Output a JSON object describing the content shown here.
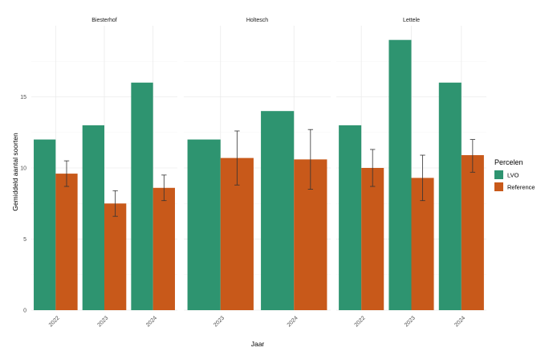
{
  "chart_data": {
    "type": "bar",
    "xlabel": "Jaar",
    "ylabel": "Gemiddeld aantal soorten",
    "ylim": [
      0,
      20
    ],
    "yticks": [
      0,
      5,
      10,
      15
    ],
    "legend": {
      "title": "Percelen",
      "position": "right",
      "entries": [
        {
          "name": "LVO",
          "color": "#2E9470"
        },
        {
          "name": "Reference",
          "color": "#C8591A"
        }
      ]
    },
    "facets": [
      {
        "title": "Biesterhof",
        "years": [
          {
            "year": "2022",
            "LVO": 12,
            "Reference": 9.6,
            "ref_err": [
              8.7,
              10.5
            ]
          },
          {
            "year": "2023",
            "LVO": 13,
            "Reference": 7.5,
            "ref_err": [
              6.6,
              8.4
            ]
          },
          {
            "year": "2024",
            "LVO": 16,
            "Reference": 8.6,
            "ref_err": [
              7.7,
              9.5
            ]
          }
        ]
      },
      {
        "title": "Holtesch",
        "years": [
          {
            "year": "2023",
            "LVO": 12,
            "Reference": 10.7,
            "ref_err": [
              8.8,
              12.6
            ]
          },
          {
            "year": "2024",
            "LVO": 14,
            "Reference": 10.6,
            "ref_err": [
              8.5,
              12.7
            ]
          }
        ]
      },
      {
        "title": "Lettele",
        "years": [
          {
            "year": "2022",
            "LVO": 13,
            "Reference": 10.0,
            "ref_err": [
              8.7,
              11.3
            ]
          },
          {
            "year": "2023",
            "LVO": 19,
            "Reference": 9.3,
            "ref_err": [
              7.7,
              10.9
            ]
          },
          {
            "year": "2024",
            "LVO": 16,
            "Reference": 10.9,
            "ref_err": [
              9.7,
              12.0
            ]
          }
        ]
      }
    ]
  }
}
